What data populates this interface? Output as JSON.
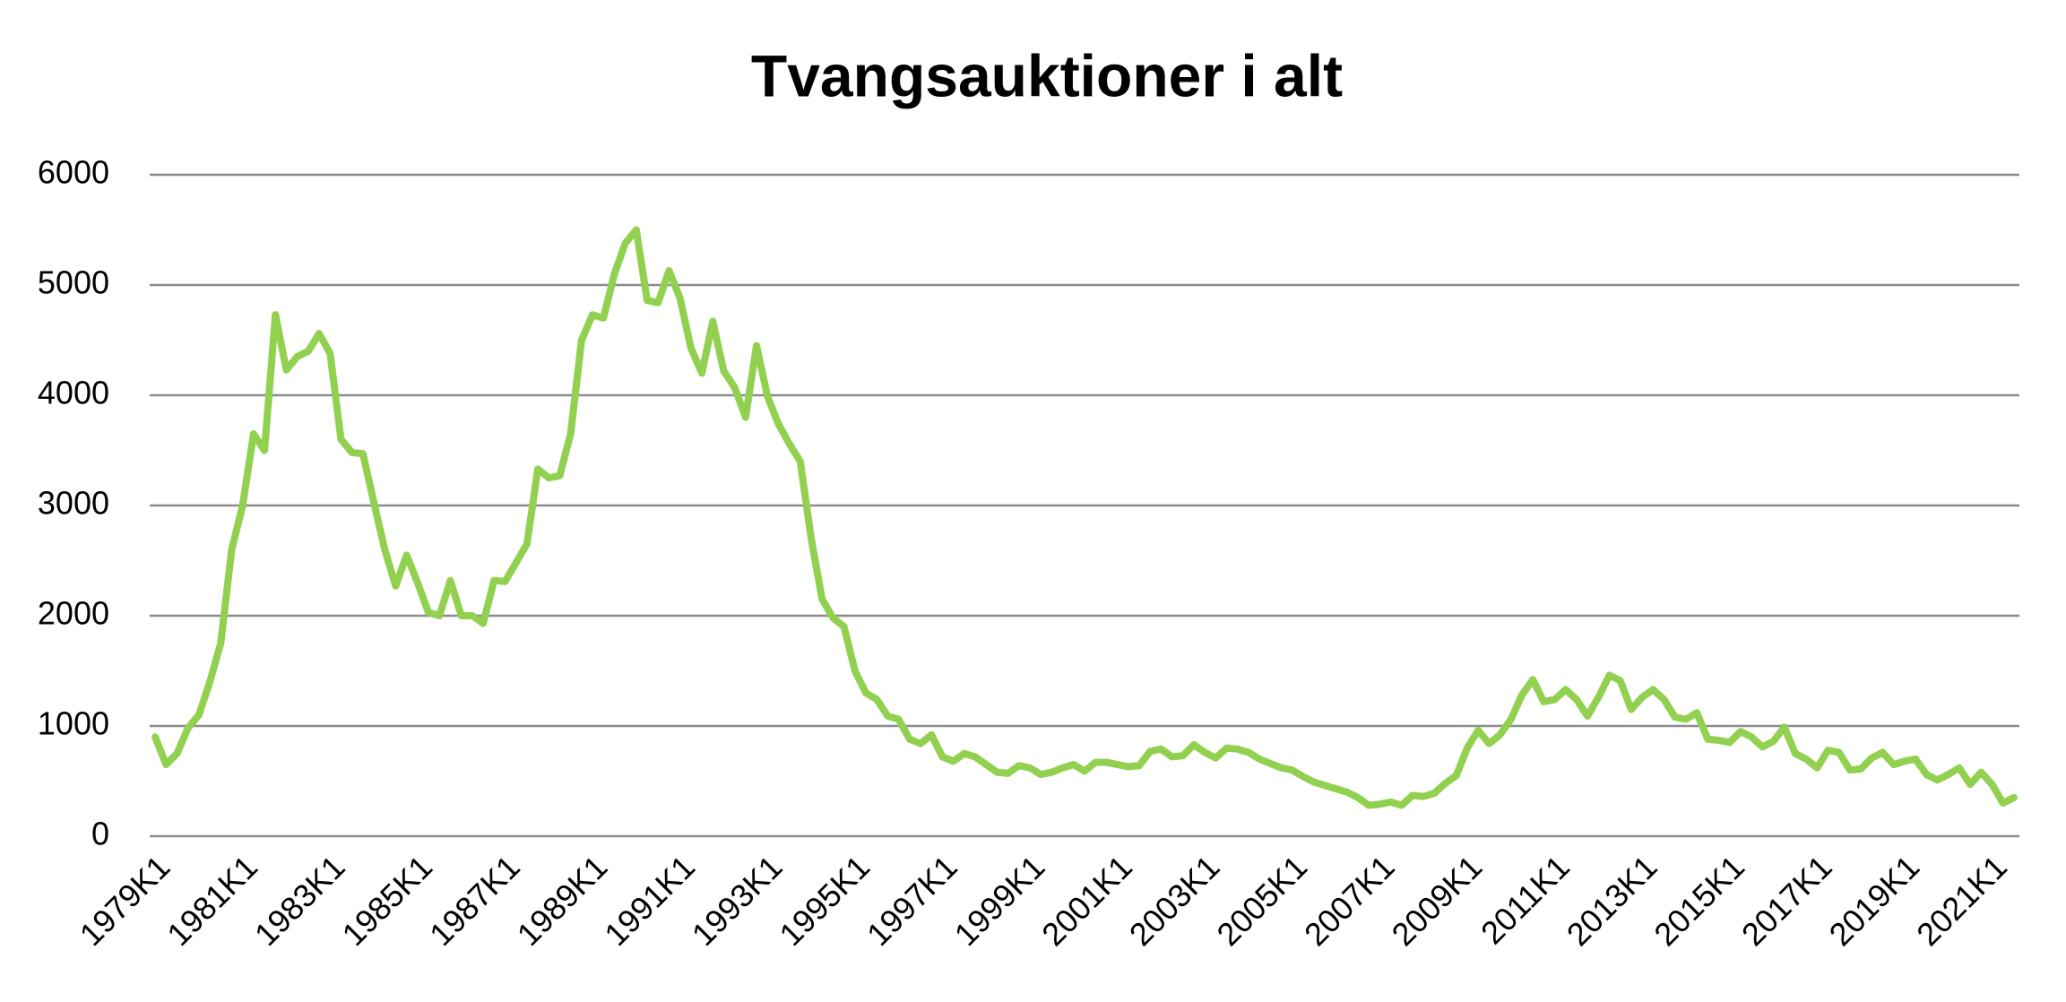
{
  "chart_data": {
    "type": "line",
    "title": "Tvangsauktioner i alt",
    "categories": [
      "1979K1",
      null,
      null,
      null,
      null,
      null,
      null,
      null,
      "1981K1",
      null,
      null,
      null,
      null,
      null,
      null,
      null,
      "1983K1",
      null,
      null,
      null,
      null,
      null,
      null,
      null,
      "1985K1",
      null,
      null,
      null,
      null,
      null,
      null,
      null,
      "1987K1",
      null,
      null,
      null,
      null,
      null,
      null,
      null,
      "1989K1",
      null,
      null,
      null,
      null,
      null,
      null,
      null,
      "1991K1",
      null,
      null,
      null,
      null,
      null,
      null,
      null,
      "1993K1",
      null,
      null,
      null,
      null,
      null,
      null,
      null,
      "1995K1",
      null,
      null,
      null,
      null,
      null,
      null,
      null,
      "1997K1",
      null,
      null,
      null,
      null,
      null,
      null,
      null,
      "1999K1",
      null,
      null,
      null,
      null,
      null,
      null,
      null,
      "2001K1",
      null,
      null,
      null,
      null,
      null,
      null,
      null,
      "2003K1",
      null,
      null,
      null,
      null,
      null,
      null,
      null,
      "2005K1",
      null,
      null,
      null,
      null,
      null,
      null,
      null,
      "2007K1",
      null,
      null,
      null,
      null,
      null,
      null,
      null,
      "2009K1",
      null,
      null,
      null,
      null,
      null,
      null,
      null,
      "2011K1",
      null,
      null,
      null,
      null,
      null,
      null,
      null,
      "2013K1",
      null,
      null,
      null,
      null,
      null,
      null,
      null,
      "2015K1",
      null,
      null,
      null,
      null,
      null,
      null,
      null,
      "2017K1",
      null,
      null,
      null,
      null,
      null,
      null,
      null,
      "2019K1",
      null,
      null,
      null,
      null,
      null,
      null,
      null,
      "2021K1",
      null,
      null
    ],
    "values": [
      900,
      650,
      750,
      980,
      1100,
      1400,
      1750,
      2600,
      3000,
      3650,
      3500,
      4730,
      4230,
      4350,
      4400,
      4560,
      4380,
      3600,
      3480,
      3470,
      3030,
      2600,
      2270,
      2550,
      2300,
      2030,
      2000,
      2320,
      2000,
      2000,
      1930,
      2320,
      2310,
      2480,
      2650,
      3330,
      3250,
      3270,
      3650,
      4500,
      4730,
      4700,
      5100,
      5380,
      5500,
      4860,
      4840,
      5130,
      4880,
      4430,
      4200,
      4670,
      4220,
      4070,
      3800,
      4450,
      3990,
      3740,
      3560,
      3400,
      2700,
      2150,
      1980,
      1900,
      1500,
      1300,
      1240,
      1090,
      1060,
      880,
      840,
      920,
      720,
      680,
      750,
      720,
      650,
      580,
      570,
      640,
      620,
      560,
      580,
      620,
      650,
      590,
      670,
      670,
      650,
      630,
      640,
      770,
      790,
      720,
      730,
      830,
      760,
      710,
      800,
      790,
      760,
      700,
      660,
      620,
      600,
      540,
      490,
      460,
      430,
      400,
      350,
      280,
      290,
      310,
      280,
      370,
      360,
      390,
      480,
      550,
      800,
      960,
      840,
      920,
      1060,
      1280,
      1420,
      1220,
      1240,
      1330,
      1240,
      1090,
      1260,
      1460,
      1410,
      1150,
      1260,
      1330,
      1240,
      1080,
      1060,
      1120,
      880,
      870,
      850,
      950,
      900,
      810,
      860,
      990,
      750,
      700,
      620,
      780,
      760,
      600,
      610,
      710,
      760,
      650,
      680,
      700,
      560,
      510,
      560,
      620,
      470,
      580,
      470,
      300,
      350
    ],
    "color": "#92d050",
    "ylim": [
      0,
      6000
    ],
    "yticks": [
      0,
      1000,
      2000,
      3000,
      4000,
      5000,
      6000
    ],
    "grid": true
  }
}
